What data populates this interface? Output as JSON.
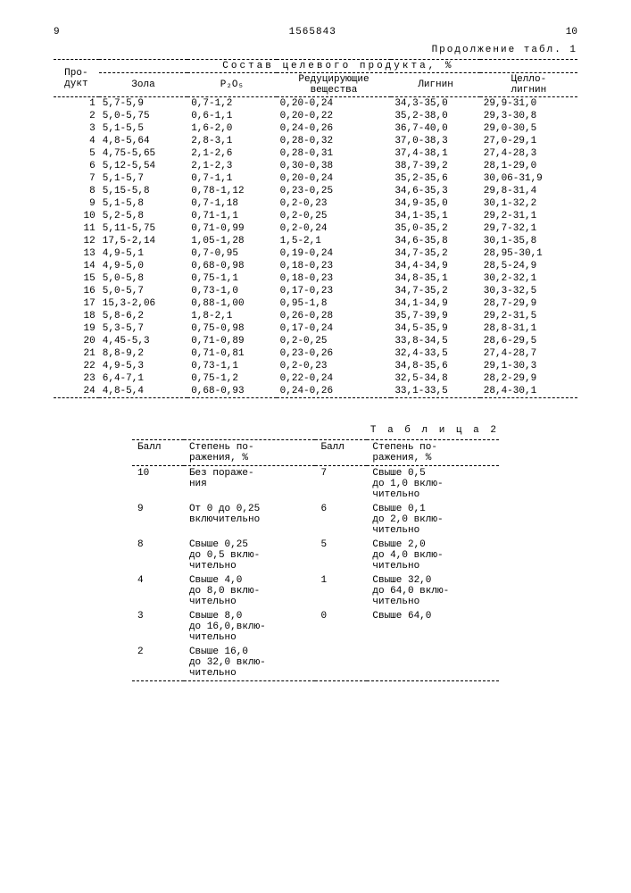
{
  "page_left": "9",
  "doc_number": "1565843",
  "page_right": "10",
  "table1": {
    "continuation": "Продолжение табл. 1",
    "col_product": "Про-\nдукт",
    "group_header": "Состав целевого продукта, %",
    "cols": [
      "Зола",
      "P₂O₅",
      "Редуцирующие\nвещества",
      "Лигнин",
      "Целло-\nлигнин"
    ],
    "rows": [
      [
        "1",
        "5,7-5,9",
        "0,7-1,2",
        "0,20-0,24",
        "34,3-35,0",
        "29,9-31,0"
      ],
      [
        "2",
        "5,0-5,75",
        "0,6-1,1",
        "0,20-0,22",
        "35,2-38,0",
        "29,3-30,8"
      ],
      [
        "3",
        "5,1-5,5",
        "1,6-2,0",
        "0,24-0,26",
        "36,7-40,0",
        "29,0-30,5"
      ],
      [
        "4",
        "4,8-5,64",
        "2,8-3,1",
        "0,28-0,32",
        "37,0-38,3",
        "27,0-29,1"
      ],
      [
        "5",
        "4,75-5,65",
        "2,1-2,6",
        "0,28-0,31",
        "37,4-38,1",
        "27,4-28,3"
      ],
      [
        "6",
        "5,12-5,54",
        "2,1-2,3",
        "0,30-0,38",
        "38,7-39,2",
        "28,1-29,0"
      ],
      [
        "7",
        "5,1-5,7",
        "0,7-1,1",
        "0,20-0,24",
        "35,2-35,6",
        "30,06-31,9"
      ],
      [
        "8",
        "5,15-5,8",
        "0,78-1,12",
        "0,23-0,25",
        "34,6-35,3",
        "29,8-31,4"
      ],
      [
        "9",
        "5,1-5,8",
        "0,7-1,18",
        "0,2-0,23",
        "34,9-35,0",
        "30,1-32,2"
      ],
      [
        "10",
        "5,2-5,8",
        "0,71-1,1",
        "0,2-0,25",
        "34,1-35,1",
        "29,2-31,1"
      ],
      [
        "11",
        "5,11-5,75",
        "0,71-0,99",
        "0,2-0,24",
        "35,0-35,2",
        "29,7-32,1"
      ],
      [
        "12",
        "17,5-2,14",
        "1,05-1,28",
        "1,5-2,1",
        "34,6-35,8",
        "30,1-35,8"
      ],
      [
        "13",
        "4,9-5,1",
        "0,7-0,95",
        "0,19-0,24",
        "34,7-35,2",
        "28,95-30,1"
      ],
      [
        "14",
        "4,9-5,0",
        "0,68-0,98",
        "0,18-0,23",
        "34,4-34,9",
        "28,5-24,9"
      ],
      [
        "15",
        "5,0-5,8",
        "0,75-1,1",
        "0,18-0,23",
        "34,8-35,1",
        "30,2-32,1"
      ],
      [
        "16",
        "5,0-5,7",
        "0,73-1,0",
        "0,17-0,23",
        "34,7-35,2",
        "30,3-32,5"
      ],
      [
        "17",
        "15,3-2,06",
        "0,88-1,00",
        "0,95-1,8",
        "34,1-34,9",
        "28,7-29,9"
      ],
      [
        "18",
        "5,8-6,2",
        "1,8-2,1",
        "0,26-0,28",
        "35,7-39,9",
        "29,2-31,5"
      ],
      [
        "19",
        "5,3-5,7",
        "0,75-0,98",
        "0,17-0,24",
        "34,5-35,9",
        "28,8-31,1"
      ],
      [
        "20",
        "4,45-5,3",
        "0,71-0,89",
        "0,2-0,25",
        "33,8-34,5",
        "28,6-29,5"
      ],
      [
        "21",
        "8,8-9,2",
        "0,71-0,81",
        "0,23-0,26",
        "32,4-33,5",
        "27,4-28,7"
      ],
      [
        "22",
        "4,9-5,3",
        "0,73-1,1",
        "0,2-0,23",
        "34,8-35,6",
        "29,1-30,3"
      ],
      [
        "23",
        "6,4-7,1",
        "0,75-1,2",
        "0,22-0,24",
        "32,5-34,8",
        "28,2-29,9"
      ],
      [
        "24",
        "4,8-5,4",
        "0,68-0,93",
        "0,24-0,26",
        "33,1-33,5",
        "28,4-30,1"
      ]
    ]
  },
  "table2": {
    "title": "Т а б л и ц а  2",
    "col_ball": "Балл",
    "col_deg": "Степень по-\nражения, %",
    "left_rows": [
      [
        "10",
        "Без пораже-\nния"
      ],
      [
        "9",
        "От 0 до 0,25\nвключительно"
      ],
      [
        "8",
        "Свыше 0,25\nдо 0,5 вклю-\nчительно"
      ],
      [
        "4",
        "Свыше 4,0\nдо 8,0 вклю-\nчительно"
      ],
      [
        "3",
        "Свыше 8,0\nдо 16,0,вклю-\nчительно"
      ],
      [
        "2",
        "Свыше 16,0\nдо 32,0 вклю-\nчительно"
      ]
    ],
    "right_rows": [
      [
        "7",
        "Свыше 0,5\nдо 1,0 вклю-\nчительно"
      ],
      [
        "6",
        "Свыше 0,1\nдо 2,0 вклю-\nчительно"
      ],
      [
        "5",
        "Свыше 2,0\nдо 4,0 вклю-\nчительно"
      ],
      [
        "1",
        "Свыше 32,0\nдо 64,0 вклю-\nчительно"
      ],
      [
        "0",
        "Свыше 64,0"
      ],
      [
        "",
        ""
      ]
    ]
  }
}
